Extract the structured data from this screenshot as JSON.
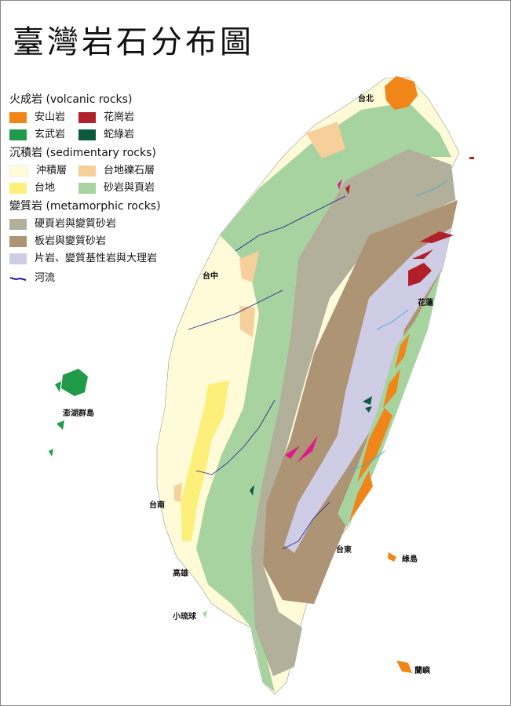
{
  "title": "臺灣岩石分布圖",
  "legend": {
    "groups": [
      {
        "title": "火成岩 (volcanic rocks)",
        "items": [
          {
            "label": "安山岩",
            "color": "#f0851a"
          },
          {
            "label": "花崗岩",
            "color": "#b0202a"
          },
          {
            "label": "玄武岩",
            "color": "#1f9a48"
          },
          {
            "label": "蛇綠岩",
            "color": "#0b5a3c"
          }
        ]
      },
      {
        "title": "沉積岩 (sedimentary rocks)",
        "items": [
          {
            "label": "沖積層",
            "color": "#fffbd9"
          },
          {
            "label": "台地礫石層",
            "color": "#f6cf9a"
          },
          {
            "label": "台地",
            "color": "#fdf07a"
          },
          {
            "label": "砂岩與頁岩",
            "color": "#a7d3a0"
          }
        ]
      },
      {
        "title": "變質岩 (metamorphic rocks)",
        "items": [
          {
            "label": "硬頁岩與變質砂岩",
            "color": "#b2af9a"
          },
          {
            "label": "板岩與變質砂岩",
            "color": "#ad9474"
          },
          {
            "label": "片岩、變質基性岩與大理岩",
            "color": "#cfcce6"
          }
        ]
      }
    ],
    "river": {
      "label": "河流",
      "color": "#1d1d8a"
    }
  },
  "places": [
    "台北",
    "台中",
    "花蓮",
    "澎湖群島",
    "台南",
    "台東",
    "綠島",
    "高雄",
    "小琉球",
    "蘭嶼"
  ],
  "colors": {
    "magenta_intrusion": "#e0198a",
    "river_light": "#38a8d8"
  }
}
